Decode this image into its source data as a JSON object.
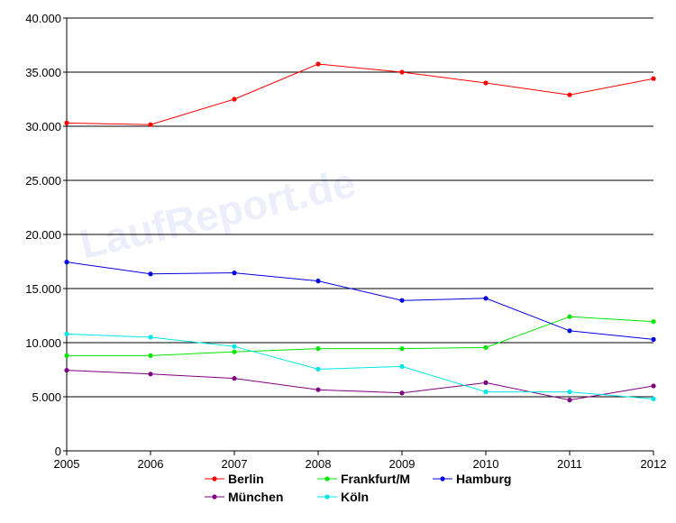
{
  "chart_data": {
    "type": "line",
    "title": "",
    "xlabel": "",
    "ylabel": "",
    "x": [
      "2005",
      "2006",
      "2007",
      "2008",
      "2009",
      "2010",
      "2011",
      "2012"
    ],
    "ylim": [
      0,
      40000
    ],
    "yticks": [
      0,
      5000,
      10000,
      15000,
      20000,
      25000,
      30000,
      35000,
      40000
    ],
    "ytick_labels": [
      "0",
      "5.000",
      "10.000",
      "15.000",
      "20.000",
      "25.000",
      "30.000",
      "35.000",
      "40.000"
    ],
    "grid": "horizontal",
    "legend_position": "bottom",
    "watermark": "LaufReport.de",
    "series": [
      {
        "name": "Berlin",
        "color": "#ff0000",
        "values": [
          30300,
          30150,
          32500,
          35750,
          35000,
          34000,
          32900,
          34400
        ]
      },
      {
        "name": "Frankfurt/M",
        "color": "#00e600",
        "values": [
          8800,
          8800,
          9150,
          9450,
          9450,
          9550,
          12400,
          11950
        ]
      },
      {
        "name": "Hamburg",
        "color": "#0000e6",
        "values": [
          17450,
          16350,
          16450,
          15700,
          13900,
          14100,
          11100,
          10300
        ]
      },
      {
        "name": "München",
        "color": "#800080",
        "values": [
          7450,
          7100,
          6700,
          5650,
          5350,
          6300,
          4700,
          6000
        ]
      },
      {
        "name": "Köln",
        "color": "#00e6e6",
        "values": [
          10800,
          10500,
          9650,
          7550,
          7800,
          5450,
          5450,
          4800
        ]
      }
    ]
  }
}
